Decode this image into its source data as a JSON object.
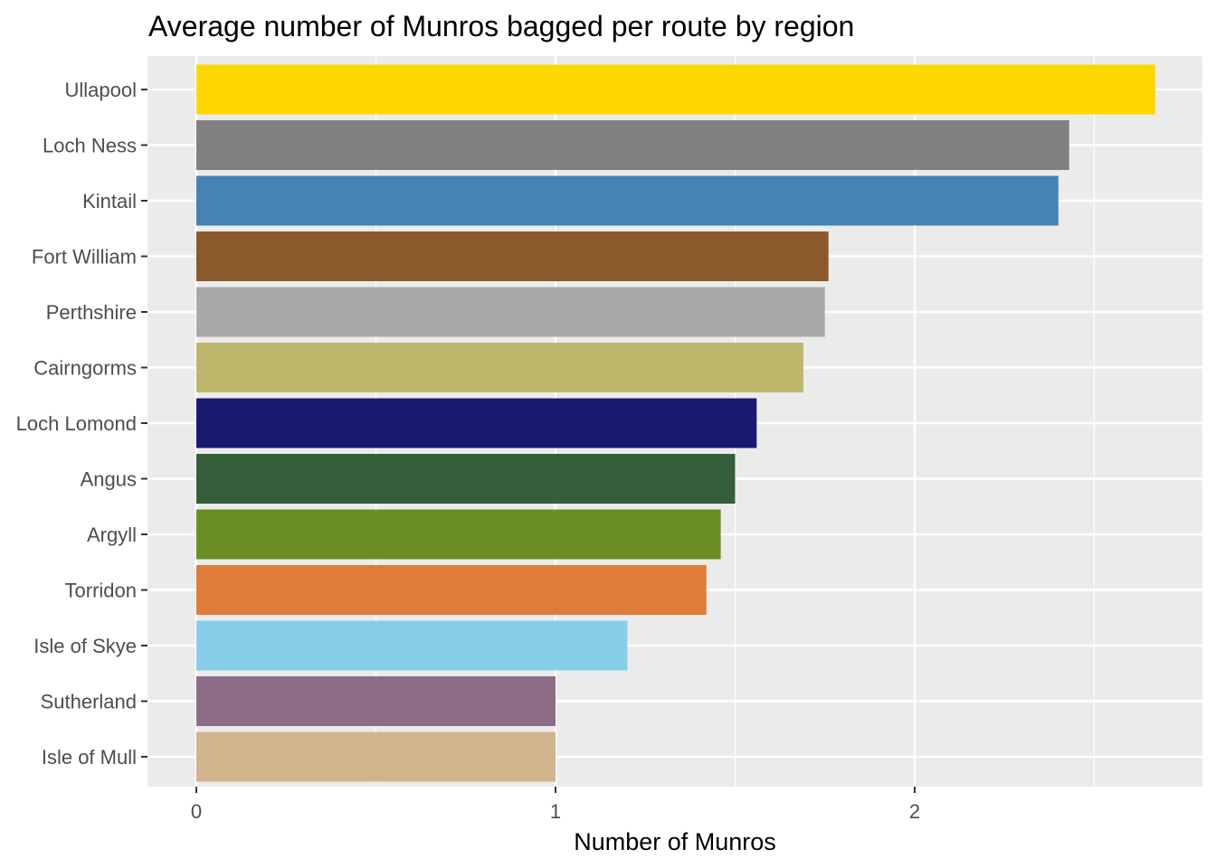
{
  "chart_data": {
    "type": "bar",
    "orientation": "horizontal",
    "title": "Average number of Munros bagged per route by region",
    "xlabel": "Number of Munros",
    "ylabel": "",
    "xlim": [
      0,
      2.8
    ],
    "x_ticks": [
      0,
      1,
      2
    ],
    "x_tick_labels": [
      "0",
      "1",
      "2"
    ],
    "grid": true,
    "legend": "none",
    "panel_background": "#ebebeb",
    "categories": [
      "Ullapool",
      "Loch Ness",
      "Kintail",
      "Fort William",
      "Perthshire",
      "Cairngorms",
      "Loch Lomond",
      "Angus",
      "Argyll",
      "Torridon",
      "Isle of Skye",
      "Sutherland",
      "Isle of Mull"
    ],
    "values": [
      2.67,
      2.43,
      2.4,
      1.76,
      1.75,
      1.69,
      1.56,
      1.5,
      1.46,
      1.42,
      1.2,
      1.0,
      1.0
    ],
    "colors": [
      "#ffd700",
      "#808080",
      "#4682b4",
      "#8b5a2b",
      "#a9a9a9",
      "#bdb76b",
      "#191970",
      "#355e3b",
      "#6b8e23",
      "#e07b39",
      "#87ceeb",
      "#8e6b86",
      "#d2b48c"
    ]
  }
}
